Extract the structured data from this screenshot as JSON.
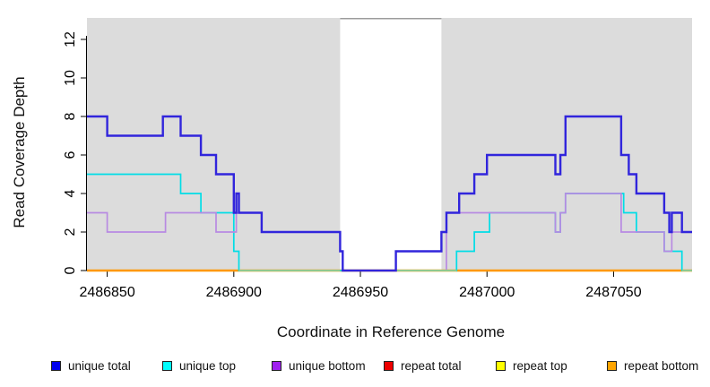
{
  "chart_data": {
    "type": "line",
    "subtype": "step-coverage",
    "title": "",
    "xlabel": "Coordinate in Reference Genome",
    "ylabel": "Read Coverage Depth",
    "xlim": [
      2486842,
      2487081
    ],
    "ylim": [
      0,
      13
    ],
    "x_ticks": [
      2486850,
      2486900,
      2486950,
      2487000,
      2487050
    ],
    "y_ticks": [
      0,
      2,
      4,
      6,
      8,
      10,
      12
    ],
    "grid": false,
    "panel_color": "#dcdcdc",
    "no_data_region": {
      "x_range": [
        2486942,
        2486982
      ],
      "color": "#ffffff",
      "top_border_color": "#9c9c9c"
    },
    "legend_position": "bottom",
    "legend": [
      {
        "label": "unique total",
        "color": "#0000ee"
      },
      {
        "label": "unique top",
        "color": "#00ffff"
      },
      {
        "label": "unique bottom",
        "color": "#a020f0"
      },
      {
        "label": "repeat total",
        "color": "#ee0000"
      },
      {
        "label": "repeat top",
        "color": "#ffff00"
      },
      {
        "label": "repeat bottom",
        "color": "#ffa500"
      }
    ],
    "series": [
      {
        "name": "repeat total",
        "color": "#e60000",
        "width": 1.7,
        "segments": [
          [
            2486842,
            2487081,
            0
          ]
        ]
      },
      {
        "name": "repeat top",
        "color": "#ffff00",
        "width": 1.7,
        "segments": [
          [
            2486842,
            2487081,
            0
          ]
        ]
      },
      {
        "name": "repeat bottom",
        "color": "#ff9800",
        "width": 2.4,
        "segments": [
          [
            2486842,
            2487081,
            0
          ]
        ]
      },
      {
        "name": "unique top",
        "color": "#00dde6",
        "width": 1.7,
        "segments": [
          [
            2486842,
            2486879,
            5
          ],
          [
            2486879,
            2486887,
            4
          ],
          [
            2486887,
            2486900,
            3
          ],
          [
            2486900,
            2486902,
            1
          ],
          [
            2486902,
            2486988,
            0
          ],
          [
            2486988,
            2486995,
            1
          ],
          [
            2486995,
            2487001,
            2
          ],
          [
            2487001,
            2487027,
            3
          ],
          [
            2487027,
            2487029,
            2
          ],
          [
            2487029,
            2487031,
            3
          ],
          [
            2487031,
            2487054,
            4
          ],
          [
            2487054,
            2487059,
            3
          ],
          [
            2487059,
            2487070,
            2
          ],
          [
            2487070,
            2487077,
            1
          ],
          [
            2487077,
            2487081,
            0
          ]
        ]
      },
      {
        "name": "unique bottom",
        "color": "#b88ae2",
        "width": 1.7,
        "segments": [
          [
            2486842,
            2486850,
            3
          ],
          [
            2486850,
            2486873,
            2
          ],
          [
            2486873,
            2486893,
            3
          ],
          [
            2486893,
            2486901,
            2
          ],
          [
            2486901,
            2486911,
            3
          ],
          [
            2486911,
            2486942,
            2
          ],
          [
            2486942,
            2486943,
            1
          ],
          [
            2486943,
            2486984,
            0
          ],
          [
            2486984,
            2487027,
            3
          ],
          [
            2487027,
            2487029,
            2
          ],
          [
            2487029,
            2487031,
            3
          ],
          [
            2487031,
            2487053,
            4
          ],
          [
            2487053,
            2487070,
            2
          ],
          [
            2487070,
            2487073,
            1
          ],
          [
            2487073,
            2487081,
            2
          ]
        ]
      },
      {
        "name": "unique total",
        "color": "#3125dc",
        "width": 2.4,
        "segments": [
          [
            2486842,
            2486850,
            8
          ],
          [
            2486850,
            2486872,
            7
          ],
          [
            2486872,
            2486879,
            8
          ],
          [
            2486879,
            2486887,
            7
          ],
          [
            2486887,
            2486893,
            6
          ],
          [
            2486893,
            2486900,
            5
          ],
          [
            2486900,
            2486901,
            3
          ],
          [
            2486901,
            2486902,
            4
          ],
          [
            2486902,
            2486911,
            3
          ],
          [
            2486911,
            2486942,
            2
          ],
          [
            2486942,
            2486943,
            1
          ],
          [
            2486943,
            2486964,
            0
          ],
          [
            2486964,
            2486982,
            1
          ],
          [
            2486982,
            2486984,
            2
          ],
          [
            2486984,
            2486989,
            3
          ],
          [
            2486989,
            2486995,
            4
          ],
          [
            2486995,
            2487000,
            5
          ],
          [
            2487000,
            2487027,
            6
          ],
          [
            2487027,
            2487029,
            5
          ],
          [
            2487029,
            2487031,
            6
          ],
          [
            2487031,
            2487053,
            8
          ],
          [
            2487053,
            2487056,
            6
          ],
          [
            2487056,
            2487059,
            5
          ],
          [
            2487059,
            2487070,
            4
          ],
          [
            2487070,
            2487072,
            3
          ],
          [
            2487072,
            2487073,
            2
          ],
          [
            2487073,
            2487077,
            3
          ],
          [
            2487077,
            2487081,
            2
          ]
        ]
      }
    ],
    "zero_line_overlap_artifact": {
      "color": "#8fc98f",
      "segments": [
        [
          2486902,
          2486942
        ],
        [
          2486964,
          2486988
        ],
        [
          2487077,
          2487081
        ]
      ]
    }
  }
}
